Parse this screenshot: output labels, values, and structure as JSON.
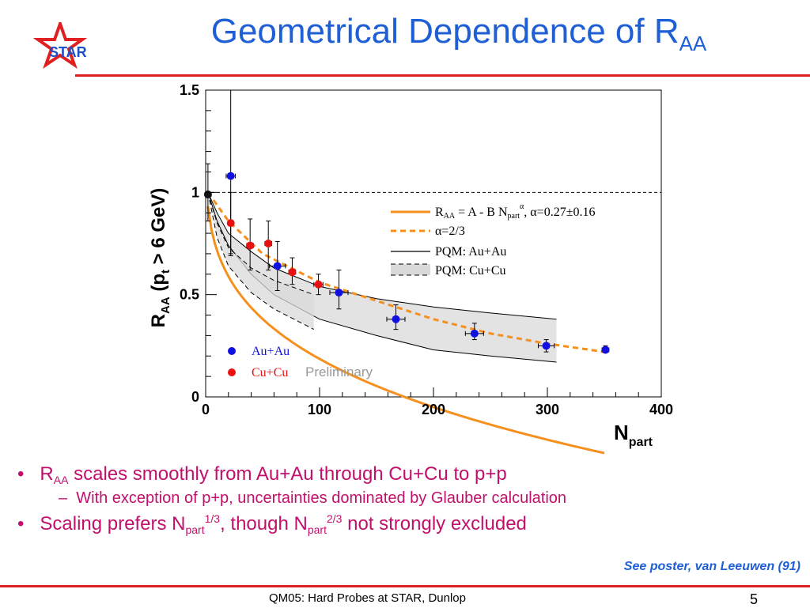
{
  "slide": {
    "title_main": "Geometrical Dependence of  R",
    "title_sub": "AA",
    "logo_text": "STAR",
    "bullets": [
      {
        "pre": "R",
        "sub": "AA",
        "post": " scales smoothly from Au+Au through Cu+Cu to p+p"
      },
      {
        "pre": "Scaling prefers N",
        "sub": "part",
        "sup": "1/3",
        "mid": ", though N",
        "sub2": "part",
        "sup2": "2/3",
        "post": " not strongly excluded"
      }
    ],
    "subbullet": "With exception of p+p, uncertainties dominated by Glauber calculation",
    "note": "See poster, van Leeuwen (91)",
    "footer": "QM05: Hard Probes at STAR, Dunlop",
    "page_number": "5"
  },
  "chart_data": {
    "type": "scatter",
    "xlabel_main": "N",
    "xlabel_sub": "part",
    "ylabel": "R_AA (p_t > 6 GeV)",
    "xlim": [
      0,
      400
    ],
    "ylim": [
      0,
      1.5
    ],
    "x_ticks": [
      "0",
      "100",
      "200",
      "300",
      "400"
    ],
    "y_ticks": [
      "0",
      "0.5",
      "1",
      "1.5"
    ],
    "reference_line": 1.0,
    "preliminary_label": "Preliminary",
    "legend_upper": [
      "R_AA = A - B N_part^α, α=0.27±0.16",
      "α=2/3",
      "PQM: Au+Au",
      "PQM: Cu+Cu"
    ],
    "colors": {
      "auau": "#1010e0",
      "cucu": "#e81010",
      "pp": "#111111",
      "fit": "#f5901e",
      "band": "#d9d9d9"
    },
    "series": [
      {
        "name": "Au+Au",
        "points": [
          {
            "x": 22,
            "y": 1.08,
            "ylo": 0.7,
            "yhi": 1.5,
            "xerr": 4
          },
          {
            "x": 63,
            "y": 0.64,
            "ylo": 0.52,
            "yhi": 0.76,
            "xerr": 7
          },
          {
            "x": 117,
            "y": 0.51,
            "ylo": 0.43,
            "yhi": 0.62,
            "xerr": 8
          },
          {
            "x": 167,
            "y": 0.38,
            "ylo": 0.33,
            "yhi": 0.45,
            "xerr": 8
          },
          {
            "x": 236,
            "y": 0.31,
            "ylo": 0.28,
            "yhi": 0.36,
            "xerr": 8
          },
          {
            "x": 299,
            "y": 0.25,
            "ylo": 0.22,
            "yhi": 0.28,
            "xerr": 7
          },
          {
            "x": 351,
            "y": 0.23,
            "ylo": 0.22,
            "yhi": 0.25,
            "xerr": 3
          }
        ]
      },
      {
        "name": "Cu+Cu",
        "points": [
          {
            "x": 22,
            "y": 0.85,
            "ylo": 0.69,
            "yhi": 1.0,
            "xerr": 2
          },
          {
            "x": 39,
            "y": 0.74,
            "ylo": 0.62,
            "yhi": 0.87,
            "xerr": 3
          },
          {
            "x": 55,
            "y": 0.75,
            "ylo": 0.62,
            "yhi": 0.86,
            "xerr": 3
          },
          {
            "x": 76,
            "y": 0.61,
            "ylo": 0.55,
            "yhi": 0.68,
            "xerr": 3
          },
          {
            "x": 99,
            "y": 0.55,
            "ylo": 0.5,
            "yhi": 0.6,
            "xerr": 4
          }
        ]
      },
      {
        "name": "p+p",
        "points": [
          {
            "x": 2,
            "y": 0.99,
            "ylo": 0.86,
            "yhi": 1.14,
            "xerr": 0
          }
        ]
      }
    ],
    "fit_curve": {
      "A": 1.33,
      "B": 0.33,
      "alpha": 0.27,
      "x_range": [
        2,
        352
      ]
    },
    "fit_curve_23": {
      "A": 1.0,
      "B": 0.0,
      "alpha": 0.667,
      "note": "",
      "points": [
        [
          2,
          1.0
        ],
        [
          20,
          0.86
        ],
        [
          50,
          0.7
        ],
        [
          100,
          0.56
        ],
        [
          150,
          0.47
        ],
        [
          200,
          0.38
        ],
        [
          250,
          0.31
        ],
        [
          300,
          0.26
        ],
        [
          350,
          0.22
        ]
      ]
    },
    "pqm_auau": {
      "upper": [
        [
          2,
          1.0
        ],
        [
          10,
          0.9
        ],
        [
          20,
          0.8
        ],
        [
          40,
          0.71
        ],
        [
          60,
          0.63
        ],
        [
          100,
          0.54
        ],
        [
          150,
          0.48
        ],
        [
          200,
          0.44
        ],
        [
          250,
          0.41
        ],
        [
          308,
          0.38
        ]
      ],
      "lower": [
        [
          2,
          1.0
        ],
        [
          10,
          0.86
        ],
        [
          20,
          0.74
        ],
        [
          40,
          0.6
        ],
        [
          60,
          0.5
        ],
        [
          100,
          0.38
        ],
        [
          150,
          0.3
        ],
        [
          200,
          0.23
        ],
        [
          250,
          0.2
        ],
        [
          308,
          0.17
        ]
      ]
    },
    "pqm_cucu": {
      "upper": [
        [
          2,
          1.0
        ],
        [
          10,
          0.85
        ],
        [
          20,
          0.73
        ],
        [
          40,
          0.63
        ],
        [
          60,
          0.57
        ],
        [
          95,
          0.5
        ]
      ],
      "lower": [
        [
          2,
          1.0
        ],
        [
          10,
          0.78
        ],
        [
          20,
          0.64
        ],
        [
          40,
          0.51
        ],
        [
          60,
          0.43
        ],
        [
          95,
          0.33
        ]
      ]
    }
  }
}
